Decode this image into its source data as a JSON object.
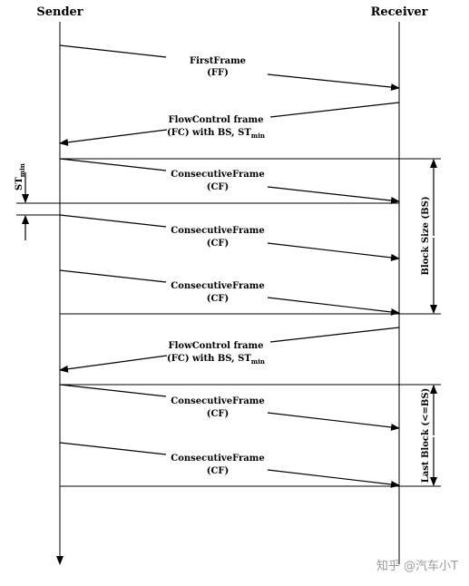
{
  "headers": {
    "sender": "Sender",
    "receiver": "Receiver"
  },
  "frames": {
    "ff": {
      "line1": "FirstFrame",
      "line2": "(FF)"
    },
    "fc1": {
      "line1": "FlowControl frame",
      "line2": "(FC) with BS, ST",
      "line2_sub": "min"
    },
    "cf1": {
      "line1": "ConsecutiveFrame",
      "line2": "(CF)"
    },
    "cf2": {
      "line1": "ConsecutiveFrame",
      "line2": "(CF)"
    },
    "cf3": {
      "line1": "ConsecutiveFrame",
      "line2": "(CF)"
    },
    "fc2": {
      "line1": "FlowControl frame",
      "line2": "(FC) with BS, ST",
      "line2_sub": "min"
    },
    "cf4": {
      "line1": "ConsecutiveFrame",
      "line2": "(CF)"
    },
    "cf5": {
      "line1": "ConsecutiveFrame",
      "line2": "(CF)"
    }
  },
  "annotations": {
    "stmin_main": "ST",
    "stmin_sub": "min",
    "block_size": "Block Size (BS)",
    "last_block": "Last Block (<=BS)"
  },
  "watermark": "知乎 @汽车小T"
}
